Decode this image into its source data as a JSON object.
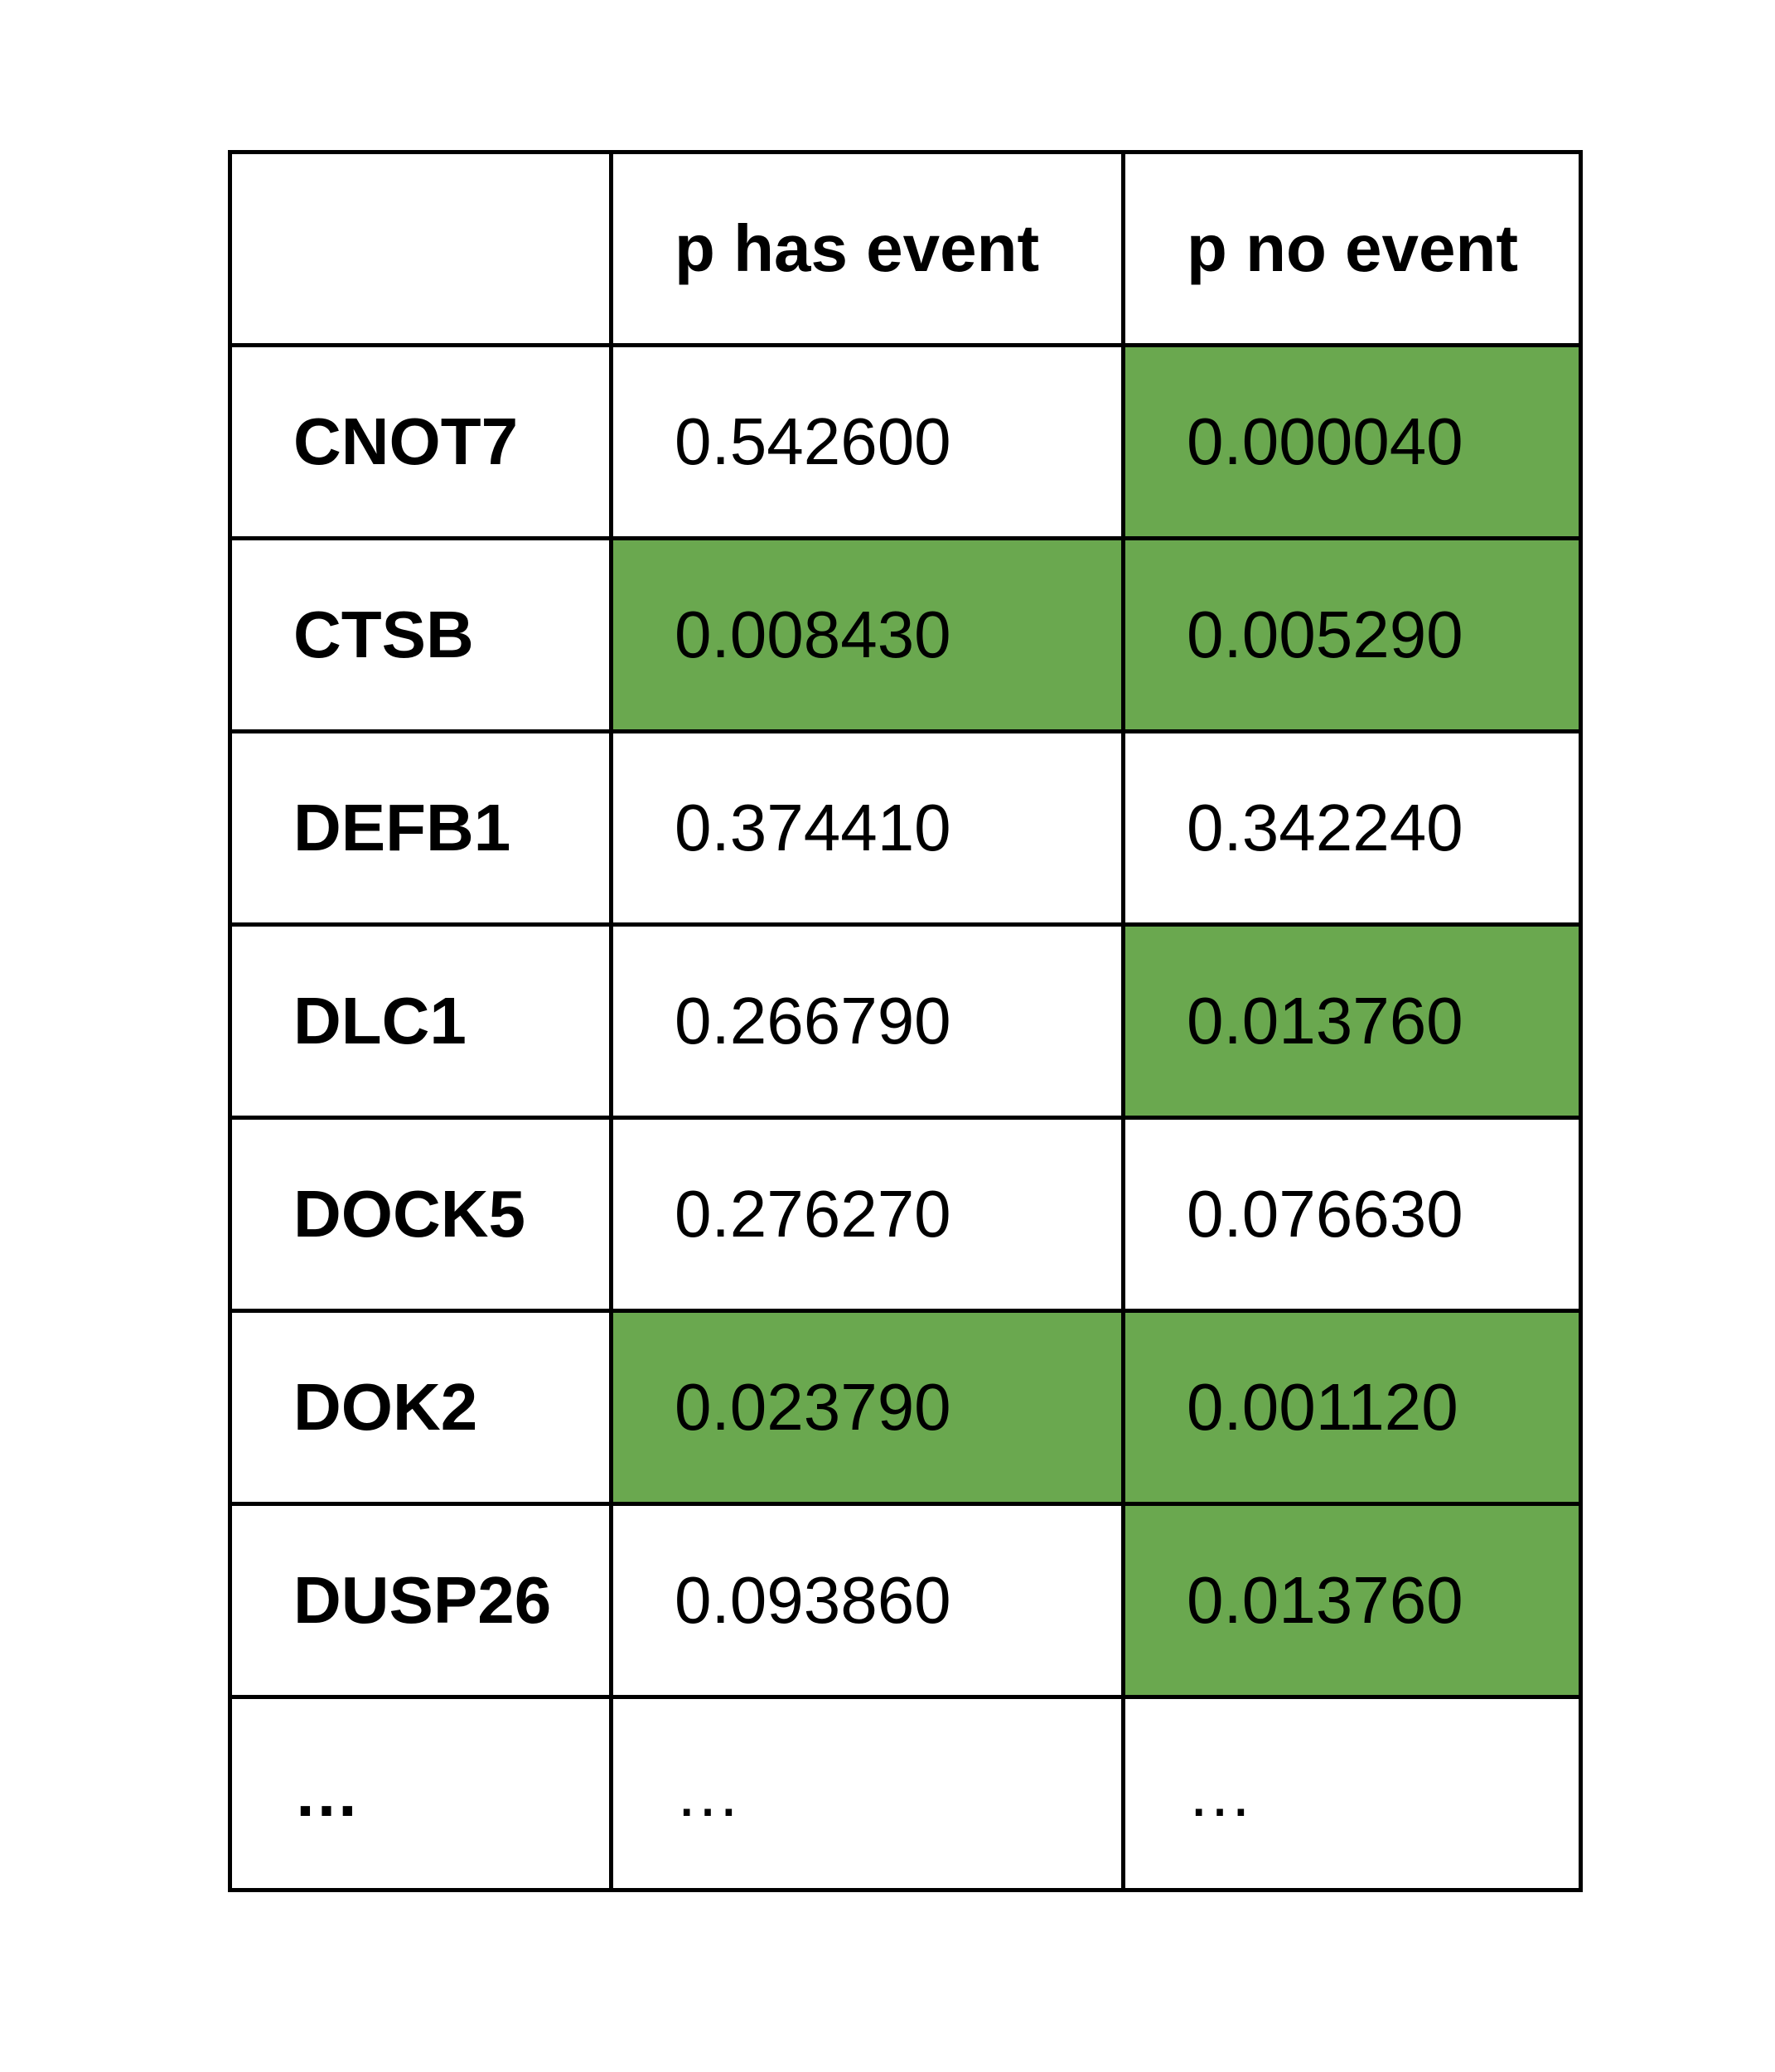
{
  "colors": {
    "highlight": "#6aa84f",
    "border": "#000000",
    "background": "#ffffff"
  },
  "table": {
    "headers": [
      "",
      "p has event",
      "p no event"
    ],
    "rows": [
      {
        "label": "CNOT7",
        "p_has_event": "0.542600",
        "p_no_event": "0.000040",
        "highlight": [
          false,
          true
        ]
      },
      {
        "label": "CTSB",
        "p_has_event": "0.008430",
        "p_no_event": "0.005290",
        "highlight": [
          true,
          true
        ]
      },
      {
        "label": "DEFB1",
        "p_has_event": "0.374410",
        "p_no_event": "0.342240",
        "highlight": [
          false,
          false
        ]
      },
      {
        "label": "DLC1",
        "p_has_event": "0.266790",
        "p_no_event": "0.013760",
        "highlight": [
          false,
          true
        ]
      },
      {
        "label": "DOCK5",
        "p_has_event": "0.276270",
        "p_no_event": "0.076630",
        "highlight": [
          false,
          false
        ]
      },
      {
        "label": "DOK2",
        "p_has_event": "0.023790",
        "p_no_event": "0.001120",
        "highlight": [
          true,
          true
        ]
      },
      {
        "label": "DUSP26",
        "p_has_event": "0.093860",
        "p_no_event": "0.013760",
        "highlight": [
          false,
          true
        ]
      },
      {
        "label": "…",
        "p_has_event": "…",
        "p_no_event": "…",
        "highlight": [
          false,
          false
        ]
      }
    ]
  }
}
